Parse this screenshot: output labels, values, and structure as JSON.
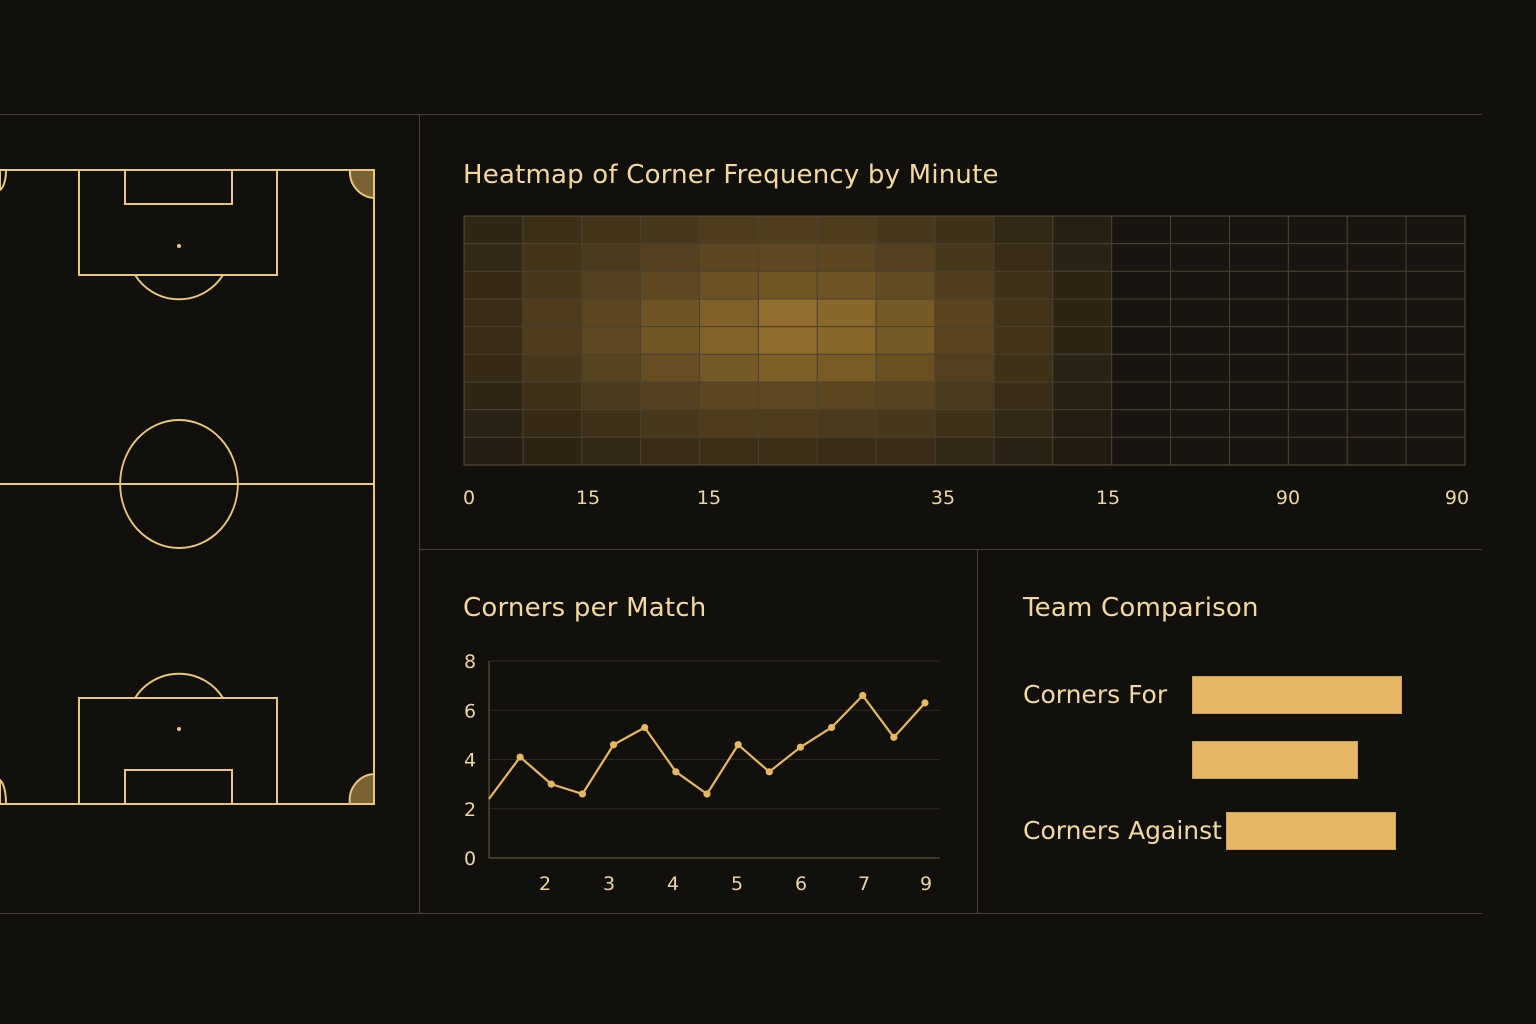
{
  "colors": {
    "background": "#12100d",
    "accent": "#e6b865",
    "pitch_line": "#e9c77e",
    "grid": "#3c3528",
    "text": "#f1d79a"
  },
  "pitch": {
    "type": "football-pitch-diagram"
  },
  "chart_data": [
    {
      "type": "heatmap",
      "title": "Heatmap of Corner Frequency by Minute",
      "columns": 17,
      "rows": 9,
      "x_tick_labels": [
        "0",
        "15",
        "15",
        "35",
        "15",
        "90",
        "90"
      ],
      "intensity": [
        [
          0.2,
          0.28,
          0.32,
          0.36,
          0.4,
          0.42,
          0.4,
          0.36,
          0.3,
          0.22,
          0.14,
          0.02,
          0.02,
          0.02,
          0.02,
          0.02,
          0.02
        ],
        [
          0.22,
          0.32,
          0.38,
          0.44,
          0.5,
          0.52,
          0.5,
          0.44,
          0.36,
          0.26,
          0.16,
          0.02,
          0.02,
          0.02,
          0.02,
          0.02,
          0.02
        ],
        [
          0.24,
          0.36,
          0.44,
          0.52,
          0.6,
          0.64,
          0.62,
          0.54,
          0.42,
          0.3,
          0.18,
          0.02,
          0.02,
          0.02,
          0.02,
          0.02,
          0.02
        ],
        [
          0.26,
          0.4,
          0.5,
          0.62,
          0.74,
          0.86,
          0.8,
          0.66,
          0.48,
          0.32,
          0.18,
          0.02,
          0.02,
          0.02,
          0.02,
          0.02,
          0.02
        ],
        [
          0.26,
          0.4,
          0.52,
          0.64,
          0.76,
          0.84,
          0.8,
          0.66,
          0.48,
          0.32,
          0.18,
          0.02,
          0.02,
          0.02,
          0.02,
          0.02,
          0.02
        ],
        [
          0.24,
          0.36,
          0.46,
          0.56,
          0.66,
          0.72,
          0.68,
          0.58,
          0.44,
          0.3,
          0.16,
          0.02,
          0.02,
          0.02,
          0.02,
          0.02,
          0.02
        ],
        [
          0.2,
          0.3,
          0.38,
          0.44,
          0.5,
          0.52,
          0.5,
          0.46,
          0.38,
          0.26,
          0.14,
          0.02,
          0.02,
          0.02,
          0.02,
          0.02,
          0.02
        ],
        [
          0.16,
          0.24,
          0.3,
          0.36,
          0.4,
          0.4,
          0.38,
          0.36,
          0.3,
          0.22,
          0.12,
          0.02,
          0.02,
          0.02,
          0.02,
          0.02,
          0.02
        ],
        [
          0.12,
          0.18,
          0.22,
          0.26,
          0.28,
          0.28,
          0.26,
          0.26,
          0.22,
          0.16,
          0.1,
          0.02,
          0.02,
          0.02,
          0.02,
          0.02,
          0.02
        ]
      ]
    },
    {
      "type": "line",
      "title": "Corners per Match",
      "xlabel": "",
      "ylabel": "",
      "ylim": [
        0,
        8
      ],
      "y_ticks": [
        0,
        2,
        4,
        6,
        8
      ],
      "x_tick_labels": [
        "2",
        "3",
        "4",
        "5",
        "6",
        "7",
        "9"
      ],
      "grid": true,
      "series": [
        {
          "values": [
            2.4,
            4.1,
            3.0,
            2.6,
            4.6,
            5.3,
            3.5,
            2.6,
            4.6,
            3.5,
            4.5,
            5.3,
            6.6,
            4.9,
            6.3
          ]
        }
      ]
    },
    {
      "type": "bar",
      "orientation": "horizontal",
      "title": "Team Comparison",
      "bars": [
        {
          "label": "Corners For",
          "value": 1.0
        },
        {
          "label": "",
          "value": 0.79
        },
        {
          "label": "Corners Against",
          "value": 0.81
        }
      ]
    }
  ]
}
